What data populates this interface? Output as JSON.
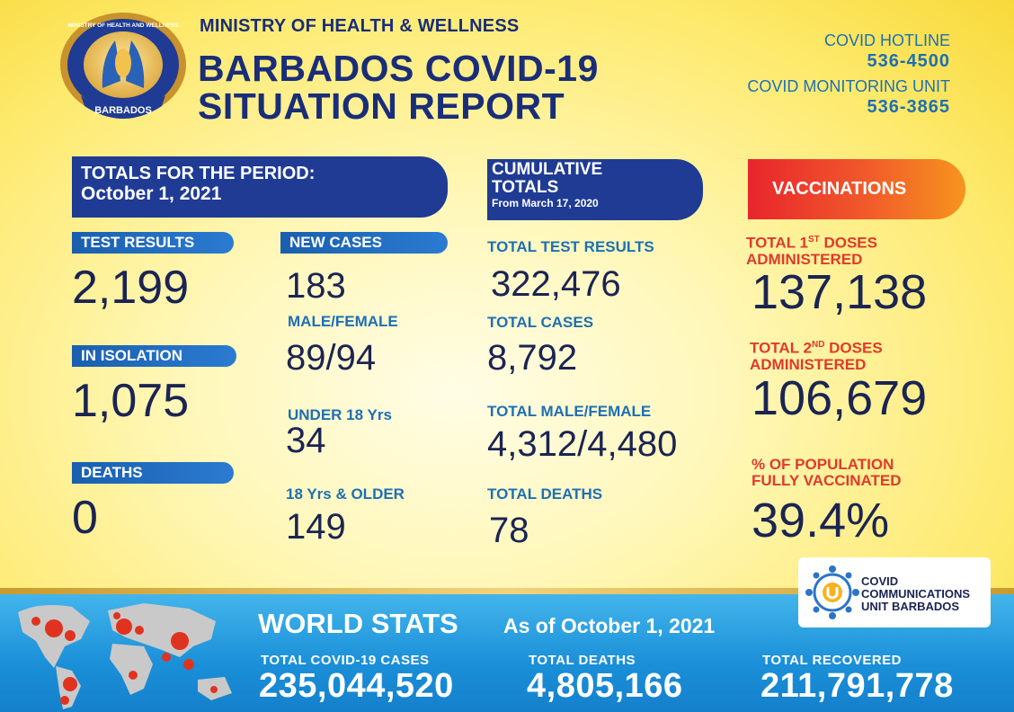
{
  "header": {
    "ministry": "MINISTRY OF HEALTH & WELLNESS",
    "title_line1": "BARBADOS COVID-19",
    "title_line2": "SITUATION REPORT",
    "logo_text": "MINISTRY OF HEALTH AND WELLNESS",
    "logo_country": "BARBADOS",
    "hotline_label": "COVID HOTLINE",
    "hotline_number": "536-4500",
    "monitoring_label": "COVID MONITORING UNIT",
    "monitoring_number": "536-3865"
  },
  "period": {
    "banner_line1": "TOTALS FOR THE PERIOD:",
    "banner_line2": "October 1, 2021",
    "test_results_label": "TEST RESULTS",
    "test_results_value": "2,199",
    "isolation_label": "IN ISOLATION",
    "isolation_value": "1,075",
    "deaths_label": "DEATHS",
    "deaths_value": "0",
    "new_cases_label": "NEW CASES",
    "new_cases_value": "183",
    "male_female_label": "MALE/FEMALE",
    "male_female_value": "89/94",
    "under18_label": "UNDER 18 Yrs",
    "under18_value": "34",
    "over18_label": "18 Yrs & OLDER",
    "over18_value": "149"
  },
  "cumulative": {
    "banner_line1": "CUMULATIVE",
    "banner_line2": "TOTALS",
    "banner_line3": "From March 17, 2020",
    "tests_label": "TOTAL TEST RESULTS",
    "tests_value": "322,476",
    "cases_label": "TOTAL CASES",
    "cases_value": "8,792",
    "mf_label": "TOTAL MALE/FEMALE",
    "mf_value": "4,312/4,480",
    "deaths_label": "TOTAL DEATHS",
    "deaths_value": "78"
  },
  "vaccinations": {
    "banner": "VACCINATIONS",
    "first_label_a": "TOTAL 1",
    "first_sup": "ST",
    "first_label_b": " DOSES",
    "first_label_c": "ADMINISTERED",
    "first_value": "137,138",
    "second_label_a": "TOTAL 2",
    "second_sup": "ND",
    "second_label_b": " DOSES",
    "second_label_c": "ADMINISTERED",
    "second_value": "106,679",
    "pct_label_a": "% OF POPULATION",
    "pct_label_b": "FULLY VACCINATED",
    "pct_value": "39.4%"
  },
  "world": {
    "title": "WORLD STATS",
    "subtitle": "As of October 1, 2021",
    "cases_label": "TOTAL  COVID-19  CASES",
    "cases_value": "235,044,520",
    "deaths_label": "TOTAL  DEATHS",
    "deaths_value": "4,805,166",
    "recovered_label": "TOTAL  RECOVERED",
    "recovered_value": "211,791,778"
  },
  "ccu": {
    "line1": "COVID",
    "line2": "COMMUNICATIONS",
    "line3": "UNIT BARBADOS"
  },
  "colors": {
    "navy": "#1f3b94",
    "blue": "#1e6fb5",
    "red": "#e03a2c",
    "bottom_blue": "#1a8fd8"
  }
}
